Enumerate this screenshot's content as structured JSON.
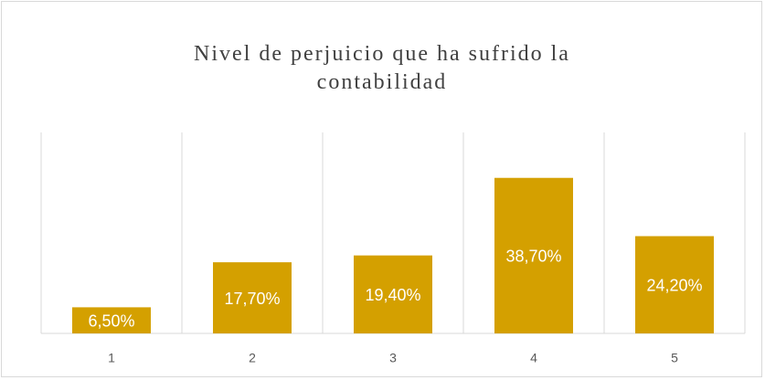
{
  "chart_data": {
    "type": "bar",
    "title": "Nivel de perjuicio que ha sufrido la contabilidad",
    "categories": [
      "1",
      "2",
      "3",
      "4",
      "5"
    ],
    "values": [
      6.5,
      17.7,
      19.4,
      38.7,
      24.2
    ],
    "value_labels": [
      "6,50%",
      "17,70%",
      "19,40%",
      "38,70%",
      "24,20%"
    ],
    "color": "#d4a000",
    "ylim": [
      0,
      50
    ]
  }
}
